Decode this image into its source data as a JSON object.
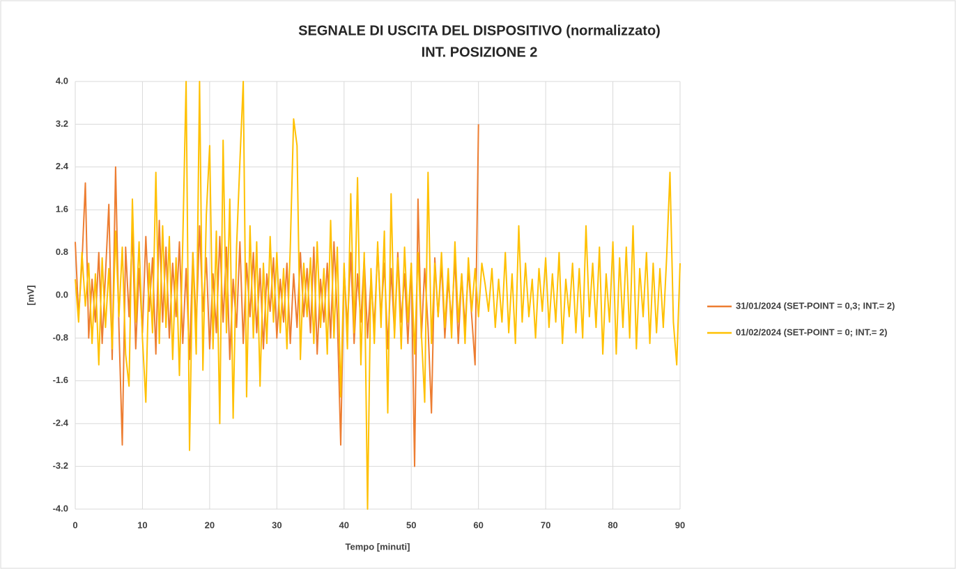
{
  "chart_data": {
    "type": "line",
    "title": "SEGNALE DI USCITA DEL DISPOSITIVO (normalizzato)",
    "subtitle": "INT. POSIZIONE 2",
    "x_label": "Tempo [minuti]",
    "y_label": "[mV]",
    "xlim": [
      0,
      90
    ],
    "ylim": [
      -4,
      4
    ],
    "xticks": [
      0,
      10,
      20,
      30,
      40,
      50,
      60,
      70,
      80,
      90
    ],
    "yticks": [
      {
        "value": -4,
        "label": "-4.0"
      },
      -3.2,
      -2.4,
      -1.6,
      -0.8,
      {
        "value": 0,
        "label": "0.0"
      },
      0.8,
      1.6,
      2.4,
      3.2,
      {
        "value": 4,
        "label": "4.0"
      }
    ],
    "grid": true,
    "legend": "right",
    "x": [
      0,
      0.5,
      1,
      1.5,
      2,
      2.5,
      3,
      3.5,
      4,
      4.5,
      5,
      5.5,
      6,
      6.5,
      7,
      7.5,
      8,
      8.5,
      9,
      9.5,
      10,
      10.5,
      11,
      11.5,
      12,
      12.5,
      13,
      13.5,
      14,
      14.5,
      15,
      15.5,
      16,
      16.5,
      17,
      17.5,
      18,
      18.5,
      19,
      19.5,
      20,
      20.5,
      21,
      21.5,
      22,
      22.5,
      23,
      23.5,
      24,
      24.5,
      25,
      25.5,
      26,
      26.5,
      27,
      27.5,
      28,
      28.5,
      29,
      29.5,
      30,
      30.5,
      31,
      31.5,
      32,
      32.5,
      33,
      33.5,
      34,
      34.5,
      35,
      35.5,
      36,
      36.5,
      37,
      37.5,
      38,
      38.5,
      39,
      39.5,
      40,
      40.5,
      41,
      41.5,
      42,
      42.5,
      43,
      43.5,
      44,
      44.5,
      45,
      45.5,
      46,
      46.5,
      47,
      47.5,
      48,
      48.5,
      49,
      49.5,
      50,
      50.5,
      51,
      51.5,
      52,
      52.5,
      53,
      53.5,
      54,
      54.5,
      55,
      55.5,
      56,
      56.5,
      57,
      57.5,
      58,
      58.5,
      59,
      59.5,
      60,
      60.5,
      61,
      61.5,
      62,
      62.5,
      63,
      63.5,
      64,
      64.5,
      65,
      65.5,
      66,
      66.5,
      67,
      67.5,
      68,
      68.5,
      69,
      69.5,
      70,
      70.5,
      71,
      71.5,
      72,
      72.5,
      73,
      73.5,
      74,
      74.5,
      75,
      75.5,
      76,
      76.5,
      77,
      77.5,
      78,
      78.5,
      79,
      79.5,
      80,
      80.5,
      81,
      81.5,
      82,
      82.5,
      83,
      83.5,
      84,
      84.5,
      85,
      85.5,
      86,
      86.5,
      87,
      87.5,
      88,
      88.5,
      89,
      89.5,
      90
    ],
    "series": [
      {
        "name": "31/01/2024 (SET-POINT = 0,3; INT.= 2)",
        "color": "#ed7d31",
        "values": [
          1.0,
          -0.4,
          0.6,
          2.1,
          -0.8,
          0.3,
          -0.5,
          0.8,
          -0.9,
          0.4,
          1.7,
          -1.2,
          2.4,
          -0.6,
          -2.8,
          0.9,
          -0.4,
          1.2,
          -1.0,
          0.5,
          -0.7,
          1.1,
          -0.3,
          0.7,
          -1.1,
          1.4,
          -0.5,
          0.9,
          -0.8,
          0.6,
          -0.4,
          1.0,
          -0.9,
          0.5,
          -1.2,
          0.8,
          -0.6,
          1.3,
          -0.3,
          0.7,
          -1.0,
          0.4,
          -0.7,
          1.1,
          -0.5,
          0.9,
          -1.2,
          0.3,
          -0.6,
          1.0,
          -0.9,
          0.6,
          -0.4,
          0.8,
          -0.7,
          0.5,
          -1.0,
          0.4,
          -0.3,
          0.7,
          -0.8,
          0.3,
          -0.5,
          0.6,
          -0.9,
          0.4,
          -0.6,
          0.8,
          -0.4,
          0.5,
          -0.7,
          0.9,
          -1.1,
          0.3,
          -0.5,
          0.6,
          -0.8,
          1.0,
          -0.4,
          -2.8,
          0.5,
          -0.6,
          0.8,
          -0.9,
          0.4,
          -0.5,
          0.7,
          -0.8,
          0.3,
          -0.6,
          0.9,
          -0.4,
          0.6,
          -1.0,
          0.5,
          -0.7,
          0.8,
          -0.5,
          0.4,
          -0.9,
          0.6,
          -3.2,
          1.8,
          -0.8,
          0.5,
          -0.6,
          -2.2,
          0.7,
          -0.4,
          0.6,
          -0.8,
          0.3,
          -0.5,
          0.7,
          -0.9,
          0.4,
          -0.6,
          0.5,
          -0.4,
          -1.3,
          3.2,
          null,
          null,
          null,
          null,
          null,
          null,
          null,
          null,
          null,
          null,
          null,
          null,
          null,
          null,
          null,
          null,
          null,
          null,
          null,
          null,
          null,
          null,
          null,
          null,
          null,
          null,
          null,
          null,
          null,
          null,
          null,
          null,
          null,
          null,
          null,
          null,
          null,
          null,
          null,
          null,
          null,
          null,
          null,
          null,
          null,
          null,
          null,
          null,
          null,
          null,
          null,
          null,
          null,
          null,
          null,
          null,
          null,
          null,
          null,
          null
        ]
      },
      {
        "name": "01/02/2024 (SET-POINT = 0; INT.= 2)",
        "color": "#ffc000",
        "values": [
          0.3,
          -0.5,
          0.8,
          -0.2,
          0.6,
          -0.9,
          0.4,
          -1.3,
          0.7,
          -0.6,
          0.5,
          -1.0,
          1.2,
          -0.4,
          0.9,
          -1.1,
          -1.7,
          1.8,
          -0.5,
          1.0,
          -0.8,
          -2.0,
          0.6,
          -0.7,
          2.3,
          -0.9,
          1.3,
          -0.6,
          1.1,
          -1.2,
          0.7,
          -1.5,
          1.0,
          4.0,
          -2.9,
          0.8,
          -1.1,
          4.0,
          -1.4,
          1.5,
          2.8,
          -1.0,
          1.2,
          -2.4,
          2.9,
          -0.7,
          1.8,
          -2.3,
          0.9,
          2.5,
          4.0,
          -1.9,
          1.3,
          -0.8,
          1.0,
          -1.7,
          0.6,
          -0.9,
          1.1,
          -0.5,
          0.8,
          -0.7,
          0.5,
          -1.0,
          0.9,
          3.3,
          2.8,
          -1.2,
          0.6,
          -0.4,
          0.7,
          -0.9,
          1.0,
          -0.6,
          0.5,
          -1.1,
          1.4,
          -0.8,
          0.9,
          -1.9,
          0.6,
          -1.0,
          1.9,
          -0.7,
          2.2,
          -1.3,
          0.8,
          -4.0,
          0.5,
          -0.9,
          1.0,
          -0.6,
          1.2,
          -2.2,
          1.9,
          -0.8,
          0.7,
          -1.0,
          0.9,
          -0.5,
          0.6,
          -1.1,
          0.8,
          -0.7,
          -2.0,
          2.3,
          -0.9,
          0.6,
          -0.4,
          0.8,
          -0.6,
          0.5,
          -0.8,
          1.0,
          -0.5,
          0.4,
          -0.9,
          0.7,
          -0.3,
          0.5,
          -0.4,
          0.6,
          0.2,
          -0.3,
          0.5,
          -0.6,
          0.3,
          -0.5,
          0.8,
          -0.7,
          0.4,
          -0.9,
          1.3,
          -0.5,
          0.6,
          -0.4,
          0.3,
          -0.8,
          0.5,
          -0.3,
          0.7,
          -0.6,
          0.4,
          -0.5,
          0.8,
          -0.9,
          0.3,
          -0.4,
          0.6,
          -0.7,
          0.5,
          -0.8,
          1.3,
          -0.4,
          0.6,
          -0.6,
          0.9,
          -1.1,
          0.4,
          -0.5,
          1.0,
          -1.1,
          0.7,
          -0.6,
          0.9,
          -0.8,
          1.3,
          -1.0,
          0.5,
          -0.4,
          0.8,
          -0.9,
          0.6,
          -0.7,
          0.5,
          -0.6,
          0.7,
          2.3,
          -0.5,
          -1.3,
          0.6
        ]
      }
    ]
  }
}
